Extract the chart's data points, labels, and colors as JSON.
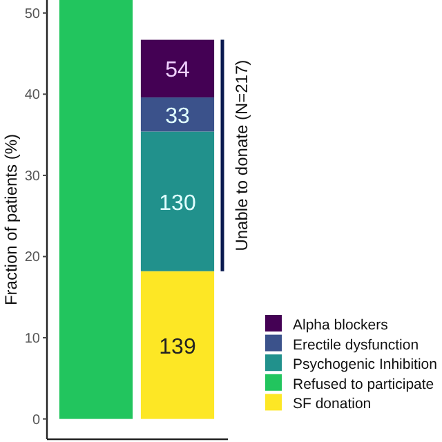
{
  "chart_data": {
    "type": "bar",
    "stacked": true,
    "ylabel": "Fraction of patients (%)",
    "categories": [
      null,
      null
    ],
    "series": [
      {
        "name": "SF donation",
        "color": "#fde725",
        "values": [
          null,
          18.2
        ]
      },
      {
        "name": "Refused to participate",
        "color": "#22c55e",
        "values": [
          51.6,
          null
        ]
      },
      {
        "name": "Psychogenic Inhibition",
        "color": "#21918c",
        "values": [
          null,
          17.2
        ]
      },
      {
        "name": "Erectile dysfunction",
        "color": "#3b528b",
        "values": [
          null,
          4.2
        ]
      },
      {
        "name": "Alpha blockers",
        "color": "#440154",
        "values": [
          null,
          7.1
        ]
      }
    ],
    "ylim": [
      -2.5,
      51.6
    ],
    "yticks": [
      0,
      10,
      20,
      30,
      40,
      50
    ],
    "grid": false,
    "legend": "right",
    "annotations": [
      "Unable to donate (N=217)",
      "139",
      "130",
      "33",
      "54"
    ]
  }
}
